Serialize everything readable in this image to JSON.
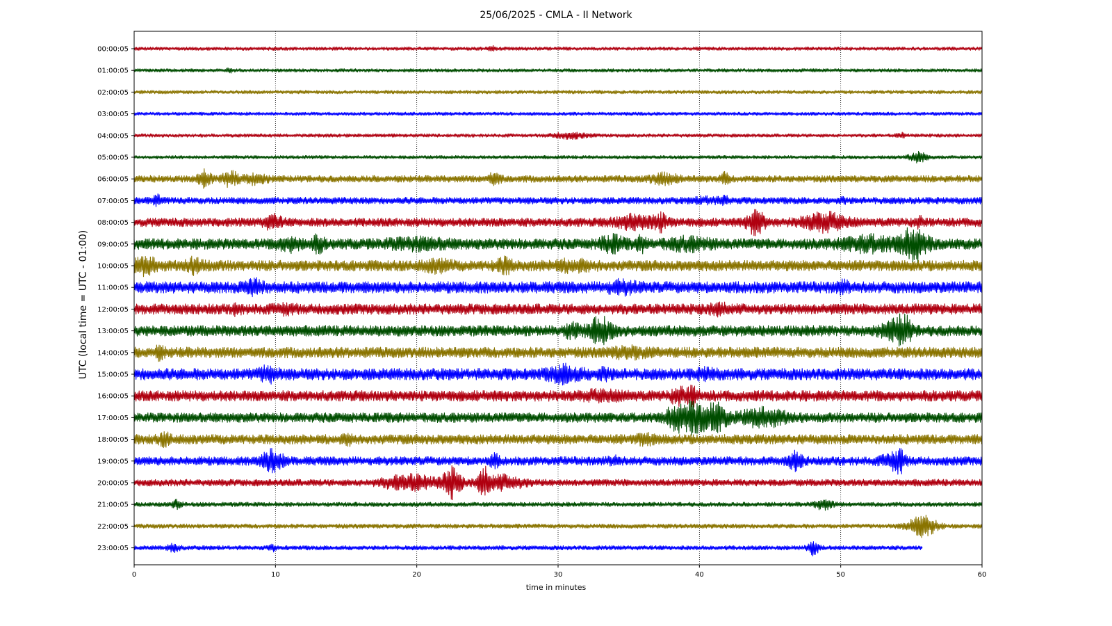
{
  "chart_data": {
    "type": "line",
    "title": "25/06/2025 - CMLA - II Network",
    "xlabel": "time in minutes",
    "ylabel": "UTC (local time = UTC - 01:00)",
    "xlim": [
      0,
      60
    ],
    "x_ticks": [
      "0",
      "10",
      "20",
      "30",
      "40",
      "50",
      "60"
    ],
    "grid": "vertical dotted at x ticks",
    "colors": [
      "#b00010",
      "#004d00",
      "#8a7400",
      "#0000ff"
    ],
    "series": [
      {
        "label": "00:00:05",
        "color": "#b00010",
        "noise": 0.35,
        "events": [
          [
            25.3,
            0.25,
            0.4
          ]
        ]
      },
      {
        "label": "01:00:05",
        "color": "#004d00",
        "noise": 0.35,
        "events": [
          [
            6.8,
            0.25,
            0.3
          ]
        ]
      },
      {
        "label": "02:00:05",
        "color": "#8a7400",
        "noise": 0.35,
        "events": []
      },
      {
        "label": "03:00:05",
        "color": "#0000ff",
        "noise": 0.35,
        "events": []
      },
      {
        "label": "04:00:05",
        "color": "#b00010",
        "noise": 0.35,
        "events": [
          [
            30.8,
            1.2,
            0.5
          ],
          [
            54.3,
            0.3,
            0.4
          ]
        ]
      },
      {
        "label": "05:00:05",
        "color": "#004d00",
        "noise": 0.35,
        "events": [
          [
            55.5,
            0.6,
            0.9
          ]
        ]
      },
      {
        "label": "06:00:05",
        "color": "#8a7400",
        "noise": 0.7,
        "events": [
          [
            5.0,
            0.4,
            1.4
          ],
          [
            6.8,
            0.5,
            1.4
          ],
          [
            8.5,
            0.8,
            0.8
          ],
          [
            25.5,
            0.4,
            1.0
          ],
          [
            37.5,
            1.0,
            0.8
          ],
          [
            41.8,
            0.3,
            0.9
          ]
        ]
      },
      {
        "label": "07:00:05",
        "color": "#0000ff",
        "noise": 0.7,
        "events": [
          [
            1.6,
            0.3,
            0.8
          ],
          [
            40.5,
            0.8,
            0.4
          ],
          [
            41.8,
            0.3,
            0.6
          ],
          [
            50.2,
            0.2,
            0.5
          ]
        ]
      },
      {
        "label": "08:00:05",
        "color": "#b00010",
        "noise": 0.9,
        "events": [
          [
            9.8,
            0.6,
            1.1
          ],
          [
            35.5,
            1.4,
            1.1
          ],
          [
            37.3,
            0.5,
            1.2
          ],
          [
            44.0,
            0.6,
            2.2
          ],
          [
            48.8,
            1.4,
            1.6
          ],
          [
            55.5,
            0.3,
            0.9
          ]
        ]
      },
      {
        "label": "09:00:05",
        "color": "#004d00",
        "noise": 1.1,
        "events": [
          [
            11.0,
            0.8,
            0.9
          ],
          [
            13.0,
            0.4,
            1.2
          ],
          [
            20.0,
            2.0,
            0.7
          ],
          [
            33.8,
            0.8,
            1.3
          ],
          [
            35.9,
            0.3,
            1.1
          ],
          [
            39.2,
            1.5,
            0.8
          ],
          [
            52.0,
            1.8,
            1.1
          ],
          [
            55.2,
            0.9,
            2.9
          ]
        ]
      },
      {
        "label": "10:00:05",
        "color": "#8a7400",
        "noise": 1.1,
        "events": [
          [
            0.8,
            0.8,
            1.2
          ],
          [
            4.3,
            0.7,
            1.0
          ],
          [
            21.5,
            0.9,
            0.8
          ],
          [
            26.2,
            0.6,
            1.0
          ],
          [
            31.0,
            1.4,
            0.6
          ]
        ]
      },
      {
        "label": "11:00:05",
        "color": "#0000ff",
        "noise": 1.2,
        "events": [
          [
            8.5,
            0.6,
            1.2
          ],
          [
            34.5,
            1.0,
            0.7
          ],
          [
            50.2,
            0.5,
            0.6
          ]
        ]
      },
      {
        "label": "12:00:05",
        "color": "#b00010",
        "noise": 1.1,
        "events": [
          [
            7.3,
            0.2,
            1.1
          ],
          [
            10.8,
            0.7,
            0.5
          ],
          [
            41.5,
            0.8,
            0.6
          ]
        ]
      },
      {
        "label": "13:00:05",
        "color": "#004d00",
        "noise": 1.1,
        "events": [
          [
            31.0,
            0.5,
            1.1
          ],
          [
            33.0,
            0.8,
            2.2
          ],
          [
            53.8,
            0.9,
            1.4
          ],
          [
            54.5,
            0.5,
            2.0
          ]
        ]
      },
      {
        "label": "14:00:05",
        "color": "#8a7400",
        "noise": 1.1,
        "events": [
          [
            1.8,
            0.3,
            0.8
          ],
          [
            35.0,
            1.2,
            0.6
          ]
        ]
      },
      {
        "label": "15:00:05",
        "color": "#0000ff",
        "noise": 1.2,
        "events": [
          [
            9.5,
            0.6,
            1.0
          ],
          [
            30.5,
            1.1,
            1.2
          ],
          [
            33.3,
            0.4,
            0.9
          ],
          [
            40.5,
            0.6,
            0.6
          ]
        ]
      },
      {
        "label": "16:00:05",
        "color": "#b00010",
        "noise": 1.1,
        "events": [
          [
            33.0,
            1.5,
            0.5
          ],
          [
            38.5,
            0.4,
            1.6
          ],
          [
            39.5,
            0.4,
            1.4
          ]
        ]
      },
      {
        "label": "17:00:05",
        "color": "#004d00",
        "noise": 1.0,
        "events": [
          [
            39.5,
            1.0,
            2.8
          ],
          [
            41.2,
            0.7,
            2.4
          ],
          [
            44.5,
            1.6,
            1.4
          ],
          [
            38.2,
            0.6,
            1.6
          ]
        ]
      },
      {
        "label": "18:00:05",
        "color": "#8a7400",
        "noise": 1.0,
        "events": [
          [
            2.2,
            0.4,
            0.8
          ],
          [
            15.2,
            0.4,
            0.6
          ],
          [
            36.2,
            0.6,
            0.7
          ]
        ]
      },
      {
        "label": "19:00:05",
        "color": "#0000ff",
        "noise": 0.9,
        "events": [
          [
            9.8,
            0.7,
            2.0
          ],
          [
            25.5,
            0.3,
            1.0
          ],
          [
            34.0,
            0.4,
            0.6
          ],
          [
            46.8,
            0.5,
            1.4
          ],
          [
            53.8,
            0.8,
            1.3
          ],
          [
            54.2,
            0.2,
            1.8
          ]
        ]
      },
      {
        "label": "20:00:05",
        "color": "#b00010",
        "noise": 0.7,
        "events": [
          [
            19.5,
            1.8,
            1.4
          ],
          [
            22.5,
            0.6,
            2.8
          ],
          [
            24.8,
            0.4,
            2.5
          ],
          [
            26.0,
            1.5,
            1.2
          ]
        ]
      },
      {
        "label": "21:00:05",
        "color": "#004d00",
        "noise": 0.45,
        "events": [
          [
            3.0,
            0.3,
            0.8
          ],
          [
            48.8,
            0.6,
            0.9
          ]
        ]
      },
      {
        "label": "22:00:05",
        "color": "#8a7400",
        "noise": 0.45,
        "events": [
          [
            55.8,
            1.0,
            2.0
          ]
        ]
      },
      {
        "label": "23:00:05",
        "color": "#0000ff",
        "noise": 0.45,
        "events": [
          [
            2.8,
            0.4,
            0.6
          ],
          [
            9.8,
            0.2,
            0.5
          ],
          [
            48.1,
            0.4,
            1.3
          ]
        ],
        "end_x": 55.8
      }
    ]
  }
}
